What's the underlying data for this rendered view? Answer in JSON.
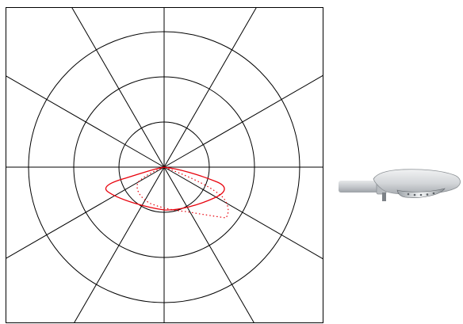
{
  "diagram": {
    "type": "polar-light-distribution",
    "ring_count": 3,
    "radial_line_step_deg": 30,
    "colors": {
      "grid": "#000000",
      "curve_solid": "#e8000b",
      "curve_dotted": "#e8000b",
      "background": "#ffffff"
    },
    "curves": [
      {
        "style": "solid"
      },
      {
        "style": "dotted"
      }
    ]
  },
  "luminaire": {
    "icon": "street-luminaire-icon",
    "colors": {
      "body": "#d7d9dc",
      "arm": "#c9ccd0",
      "lamp_glass": "#8f9499",
      "shadow": "#6f7378"
    }
  }
}
